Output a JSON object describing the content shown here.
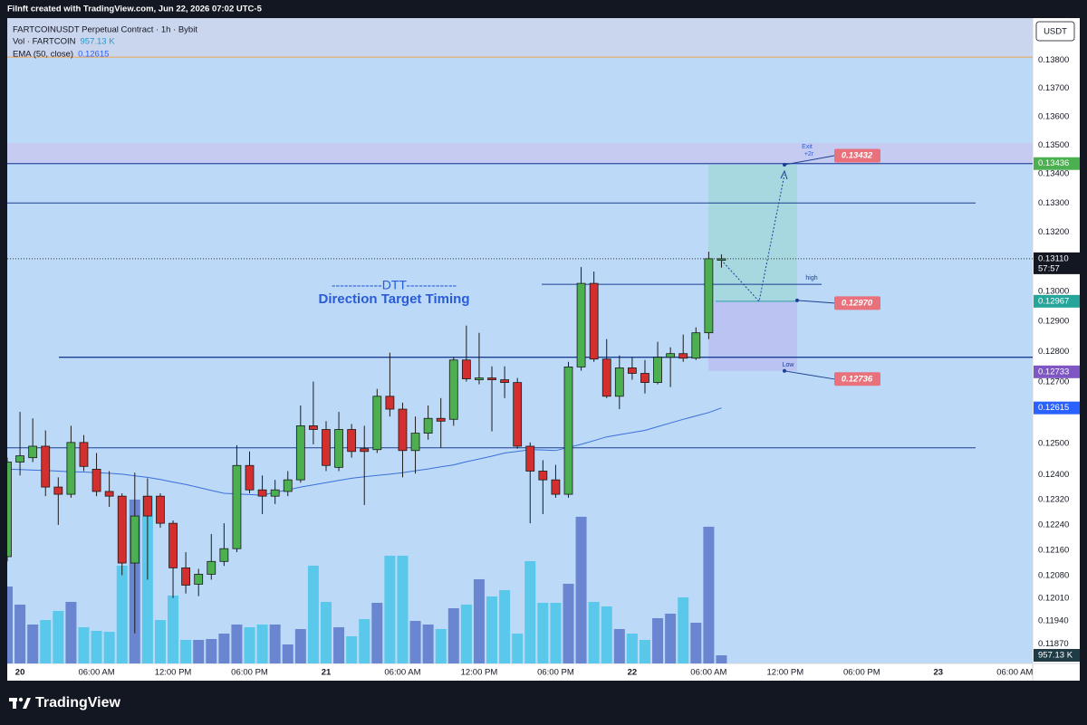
{
  "header": {
    "caption": "Filnft created with TradingView.com, Jun 22, 2026 07:02 UTC-5",
    "logo": "TradingView"
  },
  "chart_data": {
    "type": "candlestick",
    "title": "FARTCOINUSDT Perpetual Contract · 1h · Bybit",
    "currency": "USDT",
    "x": [
      -1,
      0,
      1,
      2,
      3,
      4,
      5,
      6,
      7,
      8,
      9,
      10,
      11,
      12,
      13,
      14,
      15,
      16,
      17,
      18,
      19,
      20,
      21,
      22,
      23,
      24,
      25,
      26,
      27,
      28,
      29,
      30,
      31,
      32,
      33,
      34,
      35,
      36,
      37,
      38,
      39,
      40,
      41,
      42,
      43,
      44,
      45,
      46,
      47,
      48,
      49,
      50,
      51,
      52,
      53,
      54,
      55
    ],
    "open": [
      0.1214,
      0.1244,
      0.12454,
      0.12491,
      0.1236,
      0.12337,
      0.12503,
      0.12417,
      0.12346,
      0.12331,
      0.1212,
      0.12331,
      0.12331,
      0.12245,
      0.12105,
      0.12054,
      0.12085,
      0.12125,
      0.12165,
      0.12429,
      0.12351,
      0.12331,
      0.12346,
      0.12383,
      0.12557,
      0.12545,
      0.12423,
      0.12545,
      0.12483,
      0.1248,
      0.12653,
      0.12611,
      0.12477,
      0.12533,
      0.12581,
      0.12578,
      0.12772,
      0.12707,
      0.12713,
      0.12707,
      0.12698,
      0.12491,
      0.12411,
      0.12383,
      0.12337,
      0.12749,
      0.13027,
      0.12775,
      0.12653,
      0.12746,
      0.12728,
      0.12698,
      0.12781,
      0.12793,
      0.12778,
      0.12862,
      0.13105
    ],
    "high": [
      0.12454,
      0.12602,
      0.12581,
      0.12542,
      0.12391,
      0.12557,
      0.12527,
      0.12469,
      0.12411,
      0.1234,
      0.12406,
      0.12388,
      0.1234,
      0.12254,
      0.12154,
      0.12102,
      0.12211,
      0.12245,
      0.12494,
      0.12474,
      0.12397,
      0.12383,
      0.12411,
      0.12623,
      0.12701,
      0.12572,
      0.12602,
      0.12563,
      0.12557,
      0.12677,
      0.12796,
      0.12632,
      0.12587,
      0.12623,
      0.12647,
      0.12781,
      0.12886,
      0.12862,
      0.12751,
      0.12751,
      0.12713,
      0.12503,
      0.12446,
      0.12431,
      0.12766,
      0.13082,
      0.13067,
      0.12841,
      0.12787,
      0.12781,
      0.12772,
      0.12832,
      0.12814,
      0.12856,
      0.1288,
      0.13134,
      0.13125
    ],
    "low": [
      0.12125,
      0.12397,
      0.1244,
      0.12331,
      0.1224,
      0.12326,
      0.12411,
      0.12331,
      0.12297,
      0.12082,
      0.11902,
      0.12068,
      0.12231,
      0.12011,
      0.12025,
      0.12017,
      0.12068,
      0.12111,
      0.12154,
      0.1234,
      0.12274,
      0.12306,
      0.12331,
      0.12374,
      0.12497,
      0.12411,
      0.12411,
      0.12454,
      0.12303,
      0.12469,
      0.12587,
      0.12391,
      0.12403,
      0.12512,
      0.12486,
      0.12557,
      0.12701,
      0.12692,
      0.12539,
      0.12647,
      0.12483,
      0.12245,
      0.12274,
      0.12326,
      0.12326,
      0.12737,
      0.12766,
      0.12647,
      0.12611,
      0.12707,
      0.12662,
      0.12692,
      0.12683,
      0.12766,
      0.12772,
      0.12841,
      0.1308
    ],
    "close": [
      0.1244,
      0.1246,
      0.12491,
      0.1236,
      0.12337,
      0.12503,
      0.12426,
      0.12346,
      0.12331,
      0.1212,
      0.12268,
      0.12268,
      0.12245,
      0.12105,
      0.12051,
      0.12085,
      0.12125,
      0.12165,
      0.12429,
      0.12351,
      0.12331,
      0.12351,
      0.12383,
      0.12557,
      0.12545,
      0.12429,
      0.12545,
      0.12474,
      0.12474,
      0.12653,
      0.12611,
      0.12477,
      0.12533,
      0.12581,
      0.12572,
      0.12772,
      0.1271,
      0.12713,
      0.12707,
      0.12698,
      0.12491,
      0.12411,
      0.12383,
      0.12337,
      0.12749,
      0.13027,
      0.12775,
      0.12653,
      0.12746,
      0.12728,
      0.12698,
      0.12781,
      0.12793,
      0.12778,
      0.12862,
      0.1311,
      0.1311
    ],
    "up_color": "#4caf50",
    "down_color": "#d32f2f",
    "volume": {
      "name": "Vol · FARTCOIN",
      "value_label": "957.13 K",
      "up_color": "#6a86d0",
      "down_color": "#5ac8ea",
      "ylim": [
        0,
        75800
      ],
      "values": [
        9040,
        6913,
        4573,
        5105,
        6168,
        7232,
        4254,
        3829,
        3722,
        11486,
        19249,
        19675,
        5105,
        7976,
        2765,
        2765,
        2871,
        3510,
        4573,
        4254,
        4573,
        4573,
        2233,
        4041,
        11486,
        7232,
        4254,
        3190,
        5211,
        7125,
        12656,
        12656,
        4998,
        4573,
        4041,
        6487,
        6913,
        9891,
        7870,
        8614,
        3510,
        12018,
        7125,
        7125,
        9359,
        17229,
        7232,
        6700,
        4041,
        3510,
        2765,
        5318,
        5849,
        7764,
        4786,
        16059,
        957.13
      ]
    },
    "ema": {
      "name": "EMA (50, close)",
      "color": "#3a6fd8",
      "values": [
        0.12417,
        0.12416,
        0.12414,
        0.12413,
        0.12411,
        0.12409,
        0.12408,
        0.12406,
        0.12404,
        0.12401,
        0.12396,
        0.12391,
        0.12384,
        0.12376,
        0.12368,
        0.12359,
        0.12349,
        0.1234,
        0.12338,
        0.12336,
        0.12334,
        0.12343,
        0.12351,
        0.1236,
        0.12367,
        0.12374,
        0.12381,
        0.12388,
        0.12393,
        0.12397,
        0.12401,
        0.12406,
        0.12412,
        0.12418,
        0.12425,
        0.12431,
        0.12441,
        0.1245,
        0.12459,
        0.12469,
        0.12474,
        0.1248,
        0.12479,
        0.12477,
        0.12487,
        0.12497,
        0.12509,
        0.12521,
        0.12528,
        0.12535,
        0.12542,
        0.12554,
        0.12566,
        0.12578,
        0.12589,
        0.126,
        0.12615
      ]
    },
    "xlim": [
      -1,
      79.4
    ],
    "xticks": [
      {
        "value": 0,
        "label": "20"
      },
      {
        "value": 6,
        "label": "06:00 AM"
      },
      {
        "value": 12,
        "label": "12:00 PM"
      },
      {
        "value": 18,
        "label": "06:00 PM"
      },
      {
        "value": 24,
        "label": "21"
      },
      {
        "value": 30,
        "label": "06:00 AM"
      },
      {
        "value": 36,
        "label": "12:00 PM"
      },
      {
        "value": 42,
        "label": "06:00 PM"
      },
      {
        "value": 48,
        "label": "22"
      },
      {
        "value": 54,
        "label": "06:00 AM"
      },
      {
        "value": 60,
        "label": "12:00 PM"
      },
      {
        "value": 66,
        "label": "06:00 PM"
      },
      {
        "value": 72,
        "label": "23"
      },
      {
        "value": 78,
        "label": "06:00 AM"
      }
    ],
    "ylim": [
      0.1181,
      0.1395
    ],
    "log_scale": true,
    "grid": false,
    "yticks": [
      {
        "value": 0.138,
        "label": "0.13800"
      },
      {
        "value": 0.137,
        "label": "0.13700"
      },
      {
        "value": 0.136,
        "label": "0.13600"
      },
      {
        "value": 0.135,
        "label": "0.13500"
      },
      {
        "value": 0.134,
        "label": "0.13400"
      },
      {
        "value": 0.133,
        "label": "0.13300"
      },
      {
        "value": 0.132,
        "label": "0.13200"
      },
      {
        "value": 0.13,
        "label": "0.13000"
      },
      {
        "value": 0.129,
        "label": "0.12900"
      },
      {
        "value": 0.128,
        "label": "0.12800"
      },
      {
        "value": 0.127,
        "label": "0.12700"
      },
      {
        "value": 0.125,
        "label": "0.12500"
      },
      {
        "value": 0.124,
        "label": "0.12400"
      },
      {
        "value": 0.1232,
        "label": "0.12320"
      },
      {
        "value": 0.1224,
        "label": "0.12240"
      },
      {
        "value": 0.1216,
        "label": "0.12160"
      },
      {
        "value": 0.1208,
        "label": "0.12080"
      },
      {
        "value": 0.1201,
        "label": "0.12010"
      },
      {
        "value": 0.1194,
        "label": "0.11940"
      },
      {
        "value": 0.1187,
        "label": "0.11870"
      }
    ],
    "price_labels": [
      {
        "value": 0.13436,
        "color": "#4caf50"
      },
      {
        "value": 0.1311,
        "label": "0.13110",
        "sublabel": "57:57",
        "color": "#131722"
      },
      {
        "value": 0.12967,
        "color": "#26a69a"
      },
      {
        "value": 0.12733,
        "color": "#7e57c2"
      }
    ],
    "levels": [
      0.133,
      0.13024,
      0.12781,
      0.12486
    ],
    "level_color": "#1c3f94",
    "zones": [
      {
        "from": 0.1381,
        "to": 0.1395,
        "color": "#cad5ee",
        "border": "#f0a04b"
      },
      {
        "from": 0.13436,
        "to": 0.13508,
        "color": "#c5cbf1",
        "border": "#7c86d8"
      }
    ],
    "position": {
      "target_color": "#a7d8df",
      "stop_color": "#bac3f2",
      "entry_color": "#26a69a"
    },
    "tags": [
      {
        "value": 0.13432
      },
      {
        "value": 0.1297,
        "label": "0.12970"
      },
      {
        "value": 0.12736
      }
    ],
    "tag_color": "#e8717b",
    "annotations": [
      "------------DTT------------",
      "Direction Target Timing",
      "Exit",
      "+2r",
      "high",
      "Low"
    ]
  }
}
